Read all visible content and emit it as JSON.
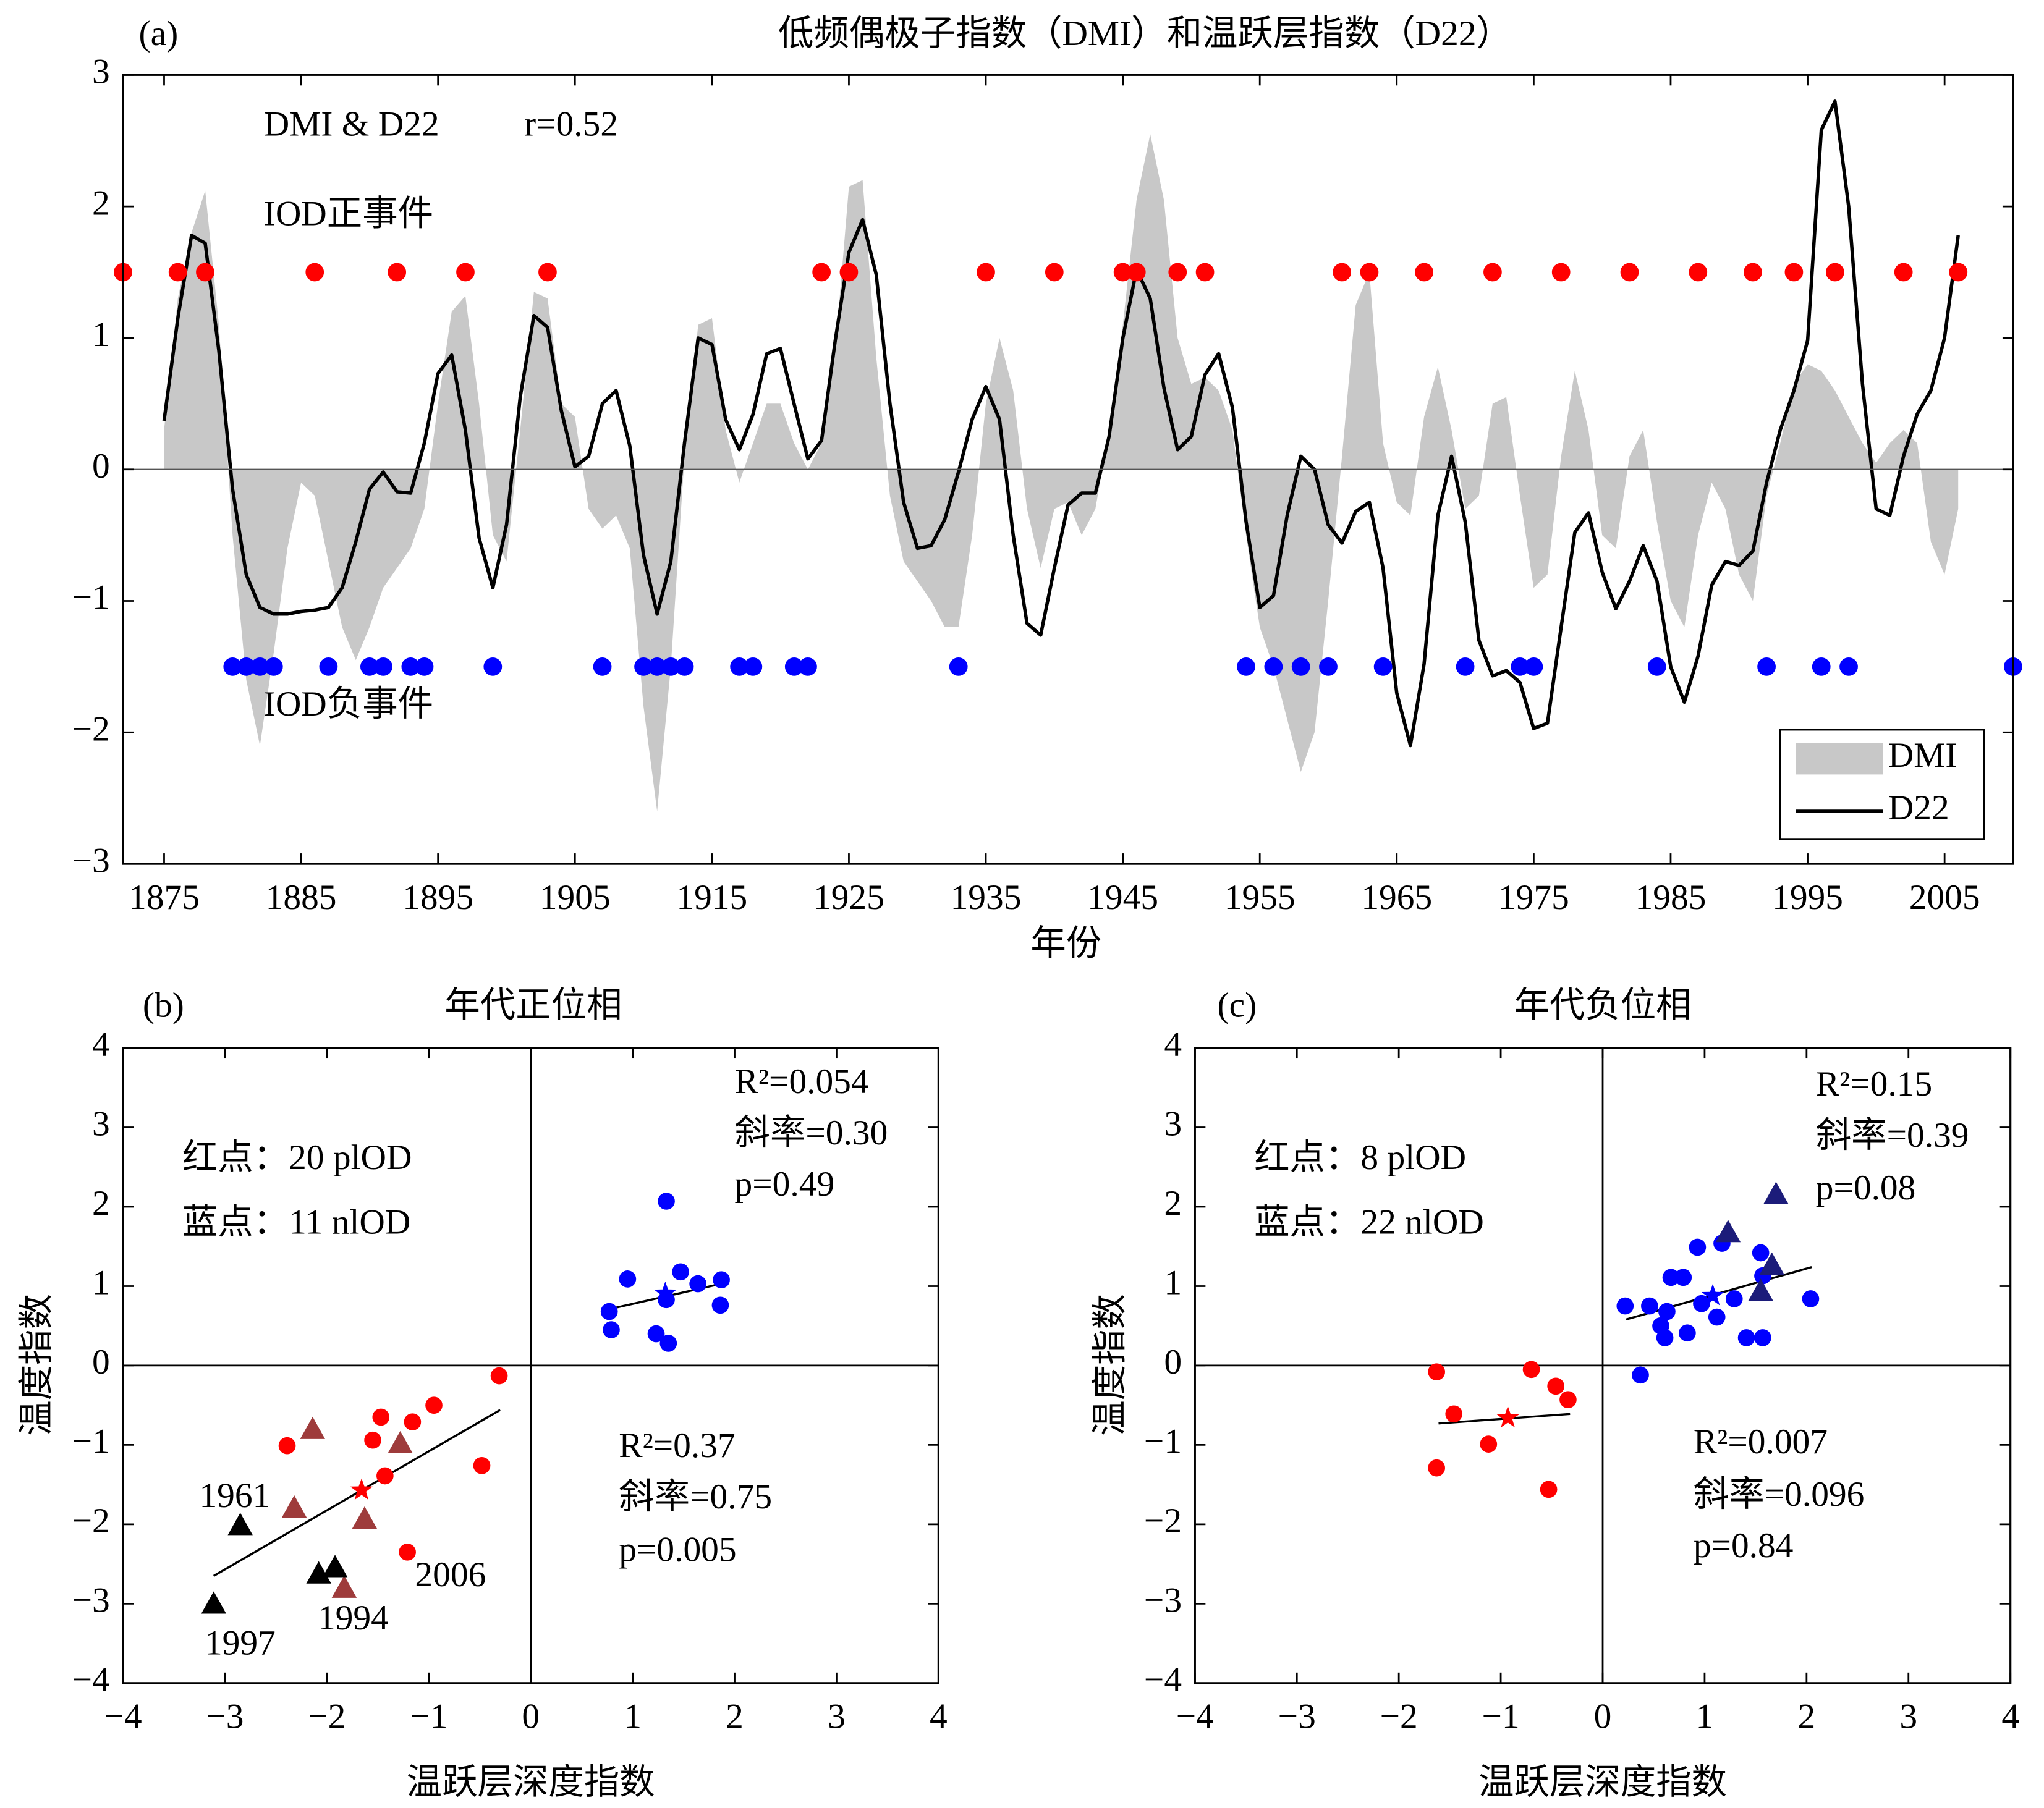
{
  "chart_data": [
    {
      "type": "line",
      "panel_label": "(a)",
      "title": "低频偶极子指数（DMI）和温跃层指数（D22）",
      "xlabel": "年份",
      "annotations": [
        {
          "text": "DMI & D22",
          "color": "#000000"
        },
        {
          "text": "r=0.52",
          "color": "#000000"
        }
      ],
      "xlim": [
        1872,
        2010
      ],
      "xticks": [
        1875,
        1885,
        1895,
        1905,
        1915,
        1925,
        1935,
        1945,
        1955,
        1965,
        1975,
        1985,
        1995,
        2005
      ],
      "ylim": [
        -3,
        3
      ],
      "yticks": [
        {
          "value": -3,
          "label": "−3"
        },
        {
          "value": -2,
          "label": "−2"
        },
        {
          "value": -1,
          "label": "−1"
        },
        0,
        1,
        2,
        3
      ],
      "legend": "lower right",
      "x": [
        1875,
        1876,
        1877,
        1878,
        1879,
        1880,
        1881,
        1882,
        1883,
        1884,
        1885,
        1886,
        1887,
        1888,
        1889,
        1890,
        1891,
        1892,
        1893,
        1894,
        1895,
        1896,
        1897,
        1898,
        1899,
        1900,
        1901,
        1902,
        1903,
        1904,
        1905,
        1906,
        1907,
        1908,
        1909,
        1910,
        1911,
        1912,
        1913,
        1914,
        1915,
        1916,
        1917,
        1918,
        1919,
        1920,
        1921,
        1922,
        1923,
        1924,
        1925,
        1926,
        1927,
        1928,
        1929,
        1930,
        1931,
        1932,
        1933,
        1934,
        1935,
        1936,
        1937,
        1938,
        1939,
        1940,
        1941,
        1942,
        1943,
        1944,
        1945,
        1946,
        1947,
        1948,
        1949,
        1950,
        1951,
        1952,
        1953,
        1954,
        1955,
        1956,
        1957,
        1958,
        1959,
        1960,
        1961,
        1962,
        1963,
        1964,
        1965,
        1966,
        1967,
        1968,
        1969,
        1970,
        1971,
        1972,
        1973,
        1974,
        1975,
        1976,
        1977,
        1978,
        1979,
        1980,
        1981,
        1982,
        1983,
        1984,
        1985,
        1986,
        1987,
        1988,
        1989,
        1990,
        1991,
        1992,
        1993,
        1994,
        1995,
        1996,
        1997,
        1998,
        1999,
        2000,
        2001,
        2002,
        2003,
        2004,
        2005,
        2006
      ],
      "series": [
        {
          "name": "DMI",
          "color": "#c8c8c8",
          "fill": true,
          "values": [
            0.3,
            1.3,
            1.8,
            2.12,
            1.1,
            -0.5,
            -1.6,
            -2.1,
            -1.4,
            -0.6,
            -0.1,
            -0.2,
            -0.7,
            -1.2,
            -1.45,
            -1.2,
            -0.9,
            -0.75,
            -0.6,
            -0.3,
            0.5,
            1.2,
            1.32,
            0.5,
            -0.5,
            -0.7,
            0.3,
            1.35,
            1.3,
            0.5,
            0.4,
            -0.3,
            -0.45,
            -0.35,
            -0.6,
            -1.8,
            -2.6,
            -1.5,
            0.1,
            1.1,
            1.15,
            0.3,
            -0.1,
            0.2,
            0.5,
            0.5,
            0.2,
            0.0,
            0.2,
            0.9,
            2.15,
            2.2,
            0.85,
            -0.2,
            -0.7,
            -0.85,
            -1.0,
            -1.2,
            -1.2,
            -0.5,
            0.5,
            1.0,
            0.6,
            -0.3,
            -0.75,
            -0.3,
            -0.25,
            -0.5,
            -0.3,
            0.3,
            1.1,
            2.05,
            2.55,
            2.05,
            1.0,
            0.65,
            0.7,
            0.6,
            0.3,
            -0.5,
            -1.2,
            -1.5,
            -1.9,
            -2.3,
            -2.0,
            -1.0,
            0.1,
            1.25,
            1.5,
            0.2,
            -0.25,
            -0.35,
            0.4,
            0.78,
            0.3,
            -0.3,
            -0.2,
            0.5,
            0.55,
            -0.2,
            -0.9,
            -0.8,
            0.1,
            0.75,
            0.3,
            -0.5,
            -0.6,
            0.1,
            0.3,
            -0.4,
            -1.0,
            -1.2,
            -0.5,
            -0.1,
            -0.3,
            -0.8,
            -1.0,
            -0.2,
            0.2,
            0.65,
            0.8,
            0.75,
            0.6,
            0.4,
            0.2,
            0.05,
            0.2,
            0.3,
            0.2,
            -0.55,
            -0.8,
            -0.3
          ]
        },
        {
          "name": "D22",
          "color": "#000000",
          "fill": false,
          "values": [
            0.37,
            1.15,
            1.78,
            1.72,
            0.9,
            -0.15,
            -0.8,
            -1.05,
            -1.1,
            -1.1,
            -1.08,
            -1.07,
            -1.05,
            -0.9,
            -0.55,
            -0.15,
            -0.02,
            -0.17,
            -0.18,
            0.2,
            0.73,
            0.87,
            0.3,
            -0.52,
            -0.9,
            -0.42,
            0.55,
            1.17,
            1.08,
            0.45,
            0.02,
            0.1,
            0.5,
            0.6,
            0.18,
            -0.65,
            -1.1,
            -0.7,
            0.2,
            1.0,
            0.95,
            0.38,
            0.15,
            0.42,
            0.88,
            0.92,
            0.5,
            0.08,
            0.22,
            0.98,
            1.65,
            1.9,
            1.48,
            0.5,
            -0.25,
            -0.6,
            -0.58,
            -0.38,
            -0.02,
            0.38,
            0.63,
            0.38,
            -0.5,
            -1.17,
            -1.26,
            -0.75,
            -0.27,
            -0.18,
            -0.18,
            0.25,
            1.0,
            1.52,
            1.3,
            0.62,
            0.15,
            0.25,
            0.72,
            0.88,
            0.47,
            -0.4,
            -1.05,
            -0.96,
            -0.35,
            0.1,
            0.0,
            -0.42,
            -0.56,
            -0.32,
            -0.25,
            -0.75,
            -1.7,
            -2.1,
            -1.48,
            -0.35,
            0.1,
            -0.4,
            -1.3,
            -1.57,
            -1.53,
            -1.62,
            -1.97,
            -1.93,
            -1.2,
            -0.48,
            -0.33,
            -0.78,
            -1.06,
            -0.85,
            -0.58,
            -0.85,
            -1.5,
            -1.77,
            -1.42,
            -0.88,
            -0.7,
            -0.73,
            -0.62,
            -0.1,
            0.3,
            0.6,
            0.98,
            2.58,
            2.8,
            2.0,
            0.65,
            -0.3,
            -0.35,
            0.1,
            0.42,
            0.6,
            1.0,
            1.78
          ]
        }
      ],
      "events": [
        {
          "name": "IOD正事件",
          "color": "#ff0000",
          "level": 1.5,
          "years": [
            1872,
            1876,
            1878,
            1886,
            1892,
            1897,
            1903,
            1923,
            1925,
            1935,
            1940,
            1945,
            1946,
            1949,
            1951,
            1961,
            1963,
            1967,
            1972,
            1977,
            1982,
            1987,
            1991,
            1994,
            1997,
            2002,
            2006
          ]
        },
        {
          "name": "IOD负事件",
          "color": "#0000ff",
          "level": -1.5,
          "years": [
            1880,
            1881,
            1882,
            1883,
            1887,
            1890,
            1891,
            1893,
            1894,
            1899,
            1907,
            1910,
            1911,
            1912,
            1913,
            1917,
            1918,
            1921,
            1922,
            1933,
            1954,
            1956,
            1958,
            1960,
            1964,
            1970,
            1974,
            1975,
            1984,
            1992,
            1996,
            1998,
            2010
          ]
        }
      ]
    },
    {
      "type": "scatter",
      "panel_label": "(b)",
      "title": "年代正位相",
      "xlabel": "温跃层深度指数",
      "ylabel": "温度指数",
      "xlim": [
        -4,
        4
      ],
      "xticks": [
        {
          "value": -4,
          "label": "−4"
        },
        {
          "value": -3,
          "label": "−3"
        },
        {
          "value": -2,
          "label": "−2"
        },
        {
          "value": -1,
          "label": "−1"
        },
        0,
        1,
        2,
        3,
        4
      ],
      "ylim": [
        -4,
        4
      ],
      "yticks": [
        {
          "value": -4,
          "label": "−4"
        },
        {
          "value": -3,
          "label": "−3"
        },
        {
          "value": -2,
          "label": "−2"
        },
        {
          "value": -1,
          "label": "−1"
        },
        0,
        1,
        2,
        3,
        4
      ],
      "series": [
        {
          "color": "#0000ff",
          "marker": "circle",
          "x": [
            1.33,
            0.95,
            1.47,
            1.64,
            1.87,
            0.77,
            1.33,
            1.86,
            0.79,
            1.23,
            1.35
          ],
          "y": [
            2.07,
            1.09,
            1.18,
            1.03,
            1.08,
            0.68,
            0.83,
            0.76,
            0.45,
            0.4,
            0.28
          ]
        },
        {
          "color": "#ff0000",
          "marker": "circle",
          "x": [
            -0.31,
            -0.95,
            -2.39,
            -1.47,
            -1.16,
            -1.55,
            -1.43,
            -0.48,
            -1.21
          ],
          "y": [
            -0.13,
            -0.5,
            -1.01,
            -0.65,
            -0.71,
            -0.94,
            -1.39,
            -1.26,
            -2.35
          ]
        },
        {
          "color": "#9e3b3b",
          "marker": "triangle",
          "x": [
            -2.14,
            -1.28,
            -2.32,
            -1.63,
            -1.83
          ],
          "y": [
            -0.81,
            -0.99,
            -1.8,
            -1.94,
            -2.81
          ]
        },
        {
          "color": "#000000",
          "marker": "triangle",
          "x": [
            -2.85,
            -3.11,
            -2.08,
            -1.92
          ],
          "y": [
            -2.02,
            -3.01,
            -2.63,
            -2.55
          ]
        },
        {
          "color": "#0000ff",
          "marker": "star",
          "x": [
            1.32
          ],
          "y": [
            0.91
          ]
        },
        {
          "color": "#ff0000",
          "marker": "star",
          "x": [
            -1.66
          ],
          "y": [
            -1.57
          ]
        }
      ],
      "fit_lines": [
        {
          "color": "#000000",
          "x": [
            0.77,
            1.87
          ],
          "y": [
            0.71,
            1.03
          ]
        },
        {
          "color": "#000000",
          "x": [
            -3.11,
            -0.3
          ],
          "y": [
            -2.65,
            -0.56
          ]
        }
      ],
      "annotations": [
        {
          "text": "红点：20 plOD",
          "color": "#000000"
        },
        {
          "text": "蓝点：11 nlOD",
          "color": "#000000"
        },
        {
          "text": "R²=0.054",
          "color": "#0000ff"
        },
        {
          "text": "斜率=0.30",
          "color": "#0000ff"
        },
        {
          "text": "p=0.49",
          "color": "#0000ff"
        },
        {
          "text": "R²=0.37",
          "color": "#ff0000"
        },
        {
          "text": "斜率=0.75",
          "color": "#ff0000"
        },
        {
          "text": "p=0.005",
          "color": "#ff0000"
        },
        {
          "text": "1961",
          "color": "#000000"
        },
        {
          "text": "1997",
          "color": "#000000"
        },
        {
          "text": "1994",
          "color": "#000000"
        },
        {
          "text": "2006",
          "color": "#000000"
        }
      ]
    },
    {
      "type": "scatter",
      "panel_label": "(c)",
      "title": "年代负位相",
      "xlabel": "温跃层深度指数",
      "ylabel": "温度指数",
      "xlim": [
        -4,
        4
      ],
      "xticks": [
        {
          "value": -4,
          "label": "−4"
        },
        {
          "value": -3,
          "label": "−3"
        },
        {
          "value": -2,
          "label": "−2"
        },
        {
          "value": -1,
          "label": "−1"
        },
        0,
        1,
        2,
        3,
        4
      ],
      "ylim": [
        -4,
        4
      ],
      "yticks": [
        {
          "value": -4,
          "label": "−4"
        },
        {
          "value": -3,
          "label": "−3"
        },
        {
          "value": -2,
          "label": "−2"
        },
        {
          "value": -1,
          "label": "−1"
        },
        0,
        1,
        2,
        3,
        4
      ],
      "series": [
        {
          "color": "#0000ff",
          "marker": "circle",
          "x": [
            0.22,
            0.46,
            0.63,
            0.57,
            0.61,
            0.67,
            0.79,
            0.93,
            0.97,
            0.83,
            1.12,
            1.17,
            1.29,
            1.41,
            1.57,
            1.55,
            1.57,
            2.04,
            0.37
          ],
          "y": [
            0.75,
            0.75,
            0.68,
            0.5,
            0.35,
            1.11,
            1.11,
            1.49,
            0.78,
            0.41,
            0.61,
            1.54,
            0.84,
            0.35,
            0.35,
            1.42,
            1.13,
            0.84,
            -0.12
          ]
        },
        {
          "color": "#1c1c7a",
          "marker": "triangle",
          "x": [
            1.23,
            1.7,
            1.66,
            1.55
          ],
          "y": [
            1.67,
            2.15,
            1.26,
            0.93
          ]
        },
        {
          "color": "#ff0000",
          "marker": "circle",
          "x": [
            -1.63,
            -0.7,
            -0.46,
            -0.34,
            -1.46,
            -1.12,
            -1.63,
            -0.53
          ],
          "y": [
            -0.08,
            -0.05,
            -0.26,
            -0.43,
            -0.61,
            -0.99,
            -1.29,
            -1.56
          ]
        },
        {
          "color": "#0000ff",
          "marker": "star",
          "x": [
            1.08
          ],
          "y": [
            0.88
          ]
        },
        {
          "color": "#ff0000",
          "marker": "star",
          "x": [
            -0.93
          ],
          "y": [
            -0.66
          ]
        }
      ],
      "fit_lines": [
        {
          "color": "#000000",
          "x": [
            0.23,
            2.05
          ],
          "y": [
            0.58,
            1.24
          ]
        },
        {
          "color": "#000000",
          "x": [
            -1.61,
            -0.32
          ],
          "y": [
            -0.73,
            -0.61
          ]
        }
      ],
      "annotations": [
        {
          "text": "红点：8 plOD",
          "color": "#000000"
        },
        {
          "text": "蓝点：22 nlOD",
          "color": "#000000"
        },
        {
          "text": "R²=0.15",
          "color": "#0000ff"
        },
        {
          "text": "斜率=0.39",
          "color": "#0000ff"
        },
        {
          "text": "p=0.08",
          "color": "#0000ff"
        },
        {
          "text": "R²=0.007",
          "color": "#ff0000"
        },
        {
          "text": "斜率=0.096",
          "color": "#ff0000"
        },
        {
          "text": "p=0.84",
          "color": "#ff0000"
        }
      ]
    }
  ]
}
